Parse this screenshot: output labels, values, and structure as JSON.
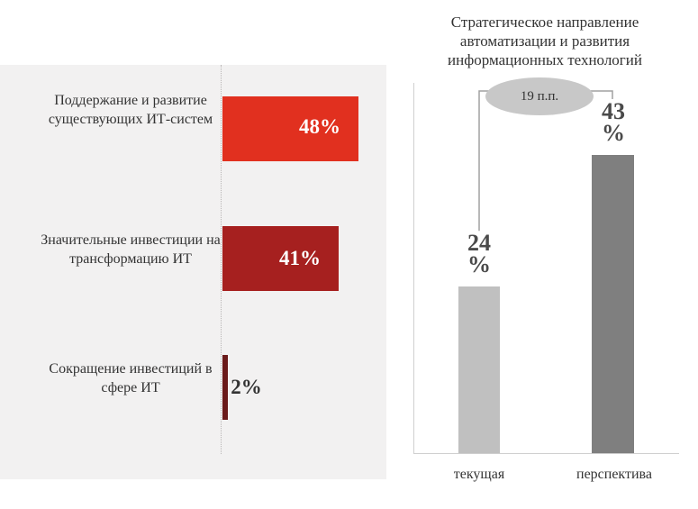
{
  "chart_data": [
    {
      "type": "bar",
      "orientation": "horizontal",
      "categories": [
        "Поддержание и развитие существующих ИТ-систем",
        "Значительные инвестиции на трансформацию ИТ",
        "Сокращение инвестиций в сфере ИТ"
      ],
      "values": [
        48,
        41,
        2
      ],
      "value_labels": [
        "48%",
        "41%",
        "2%"
      ],
      "xlim": [
        0,
        50
      ],
      "colors": [
        "#e1301f",
        "#a6201f",
        "#6a1a1a"
      ]
    },
    {
      "type": "bar",
      "orientation": "vertical",
      "title": "Стратегическое направление автоматизации и развития информационных технологий",
      "categories": [
        "текущая",
        "перспектива"
      ],
      "values": [
        24,
        43
      ],
      "value_labels": [
        "24\n%",
        "43\n%"
      ],
      "ylim": [
        0,
        50
      ],
      "difference_label": "19 п.п.",
      "colors": [
        "#c0c0c0",
        "#7f7f7f"
      ]
    }
  ]
}
